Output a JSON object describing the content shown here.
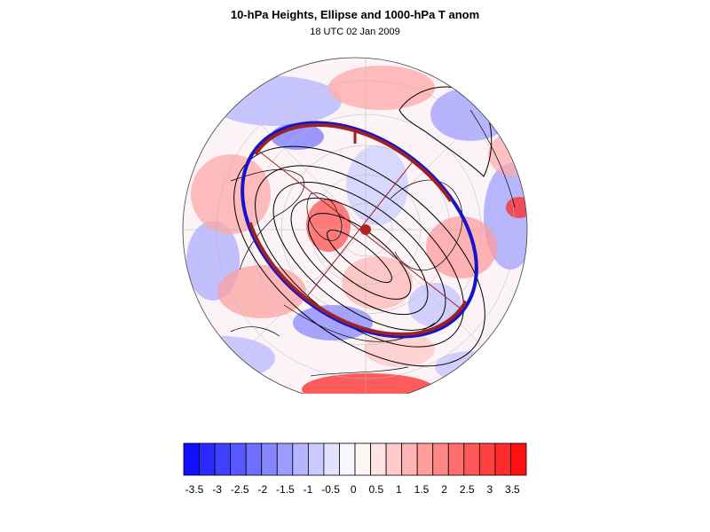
{
  "title": "10-hPa Heights, Ellipse and 1000-hPa T anom",
  "subtitle": "18 UTC 02 Jan 2009",
  "colorbar": {
    "tick_labels": [
      "-3.5",
      "-3",
      "-2.5",
      "-2",
      "-1.5",
      "-1",
      "-0.5",
      "0",
      "0.5",
      "1",
      "1.5",
      "2",
      "2.5",
      "3",
      "3.5"
    ],
    "colors": [
      "#1010ff",
      "#2a2aff",
      "#4040ff",
      "#5858ff",
      "#6e6eff",
      "#8686ff",
      "#9c9cff",
      "#b4b4ff",
      "#cacaff",
      "#e2e2ff",
      "#f6f6ff",
      "#fff6f6",
      "#ffe2e2",
      "#ffcaca",
      "#ffb4b4",
      "#ff9c9c",
      "#ff8686",
      "#ff6e6e",
      "#ff5858",
      "#ff4040",
      "#ff2a2a",
      "#ff1010"
    ]
  },
  "map": {
    "projection": "polar stereographic, north pole",
    "anomaly_colors": {
      "cold": "#9a9aff",
      "cold_strong": "#4a4aff",
      "warm": "#ff9c9c",
      "warm_strong": "#ff3a3a",
      "neutral": "#ffffff"
    },
    "contour_color": "#000000",
    "ellipse_color": "#9b2226",
    "ellipse_alt_color": "#1414c8",
    "center_marker_color": "#b22222"
  }
}
